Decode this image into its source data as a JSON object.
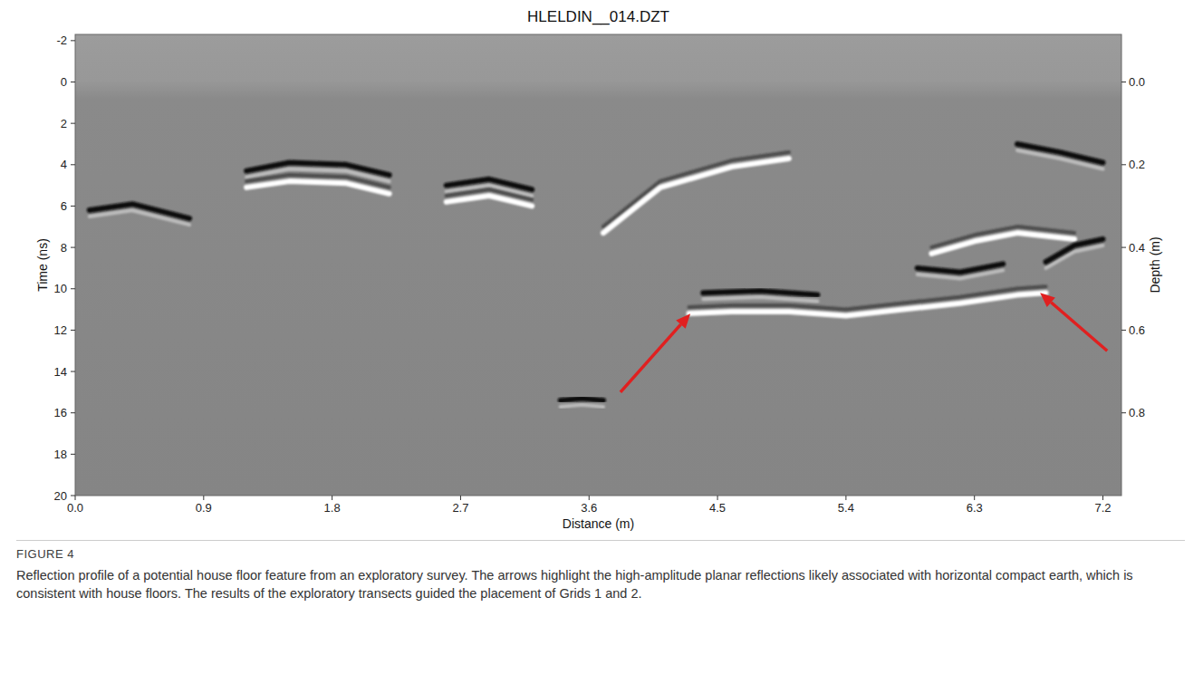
{
  "chart_data": {
    "type": "radargram",
    "title": "HLELDIN__014.DZT",
    "x_label": "Distance (m)",
    "y_label": "Time (ns)",
    "y2_label": "Depth (m)",
    "figure_label": "FIGURE 4",
    "caption": "Reflection profile of a potential house floor feature from an exploratory survey. The arrows highlight the high-amplitude planar reflections likely associated with horizontal compact earth, which is consistent with house floors. The results of the exploratory transects guided the placement of Grids 1 and 2.",
    "xlim": [
      0,
      7.33
    ],
    "xticks": [
      {
        "value": 0,
        "label": "0.0"
      },
      0.9,
      1.8,
      2.7,
      3.6,
      4.5,
      5.4,
      6.3,
      7.2
    ],
    "ylim": [
      -2.3,
      20
    ],
    "yticks": [
      -2,
      0,
      2,
      4,
      6,
      8,
      10,
      12,
      14,
      16,
      18,
      20
    ],
    "y2lim": [
      -0.115,
      1.0
    ],
    "y2ticks": [
      {
        "value": 0,
        "label": "0.0"
      },
      0.2,
      0.4,
      0.6,
      0.8
    ],
    "grid": false,
    "series": [
      {
        "color": "#ffffff",
        "x": [
          4.3,
          4.6,
          5.0,
          5.4,
          5.8,
          6.2,
          6.6,
          6.8
        ],
        "values": [
          11.2,
          11.1,
          11.1,
          11.3,
          11.0,
          10.7,
          10.3,
          10.2
        ]
      },
      {
        "color": "#111111",
        "x": [
          4.4,
          4.8,
          5.2
        ],
        "values": [
          10.2,
          10.1,
          10.3
        ]
      },
      {
        "color": "#111111",
        "x": [
          1.2,
          1.5,
          1.9,
          2.2
        ],
        "values": [
          4.3,
          3.9,
          4.0,
          4.5
        ]
      },
      {
        "color": "#ffffff",
        "x": [
          1.2,
          1.5,
          1.9,
          2.2
        ],
        "values": [
          5.1,
          4.8,
          4.9,
          5.4
        ]
      },
      {
        "color": "#111111",
        "x": [
          2.6,
          2.9,
          3.2
        ],
        "values": [
          5.0,
          4.7,
          5.2
        ]
      },
      {
        "color": "#ffffff",
        "x": [
          2.6,
          2.9,
          3.2
        ],
        "values": [
          5.8,
          5.5,
          6.0
        ]
      },
      {
        "color": "#ffffff",
        "x": [
          3.7,
          4.1,
          4.6,
          5.0
        ],
        "values": [
          7.3,
          5.1,
          4.1,
          3.7
        ]
      },
      {
        "color": "#111111",
        "x": [
          0.1,
          0.4,
          0.8
        ],
        "values": [
          6.2,
          5.9,
          6.6
        ]
      },
      {
        "color": "#111111",
        "x": [
          5.9,
          6.2,
          6.5
        ],
        "values": [
          9.0,
          9.2,
          8.8
        ]
      },
      {
        "color": "#ffffff",
        "x": [
          6.0,
          6.3,
          6.6,
          7.0
        ],
        "values": [
          8.3,
          7.7,
          7.3,
          7.6
        ]
      },
      {
        "color": "#111111",
        "x": [
          6.8,
          7.0,
          7.2
        ],
        "values": [
          8.7,
          7.9,
          7.6
        ]
      },
      {
        "color": "#111111",
        "x": [
          6.6,
          6.9,
          7.2
        ],
        "values": [
          3.0,
          3.4,
          3.9
        ]
      },
      {
        "color": "#111111",
        "x": [
          3.4,
          3.55,
          3.7
        ],
        "values": [
          15.4,
          15.3,
          15.4
        ]
      }
    ],
    "arrows": [
      {
        "x": 4.31,
        "y": 11.2,
        "x_tail": 3.82,
        "y_tail": 15.0,
        "color": "#e02020"
      },
      {
        "x": 6.76,
        "y": 10.2,
        "x_tail": 7.23,
        "y_tail": 13.0,
        "color": "#e02020"
      }
    ]
  }
}
